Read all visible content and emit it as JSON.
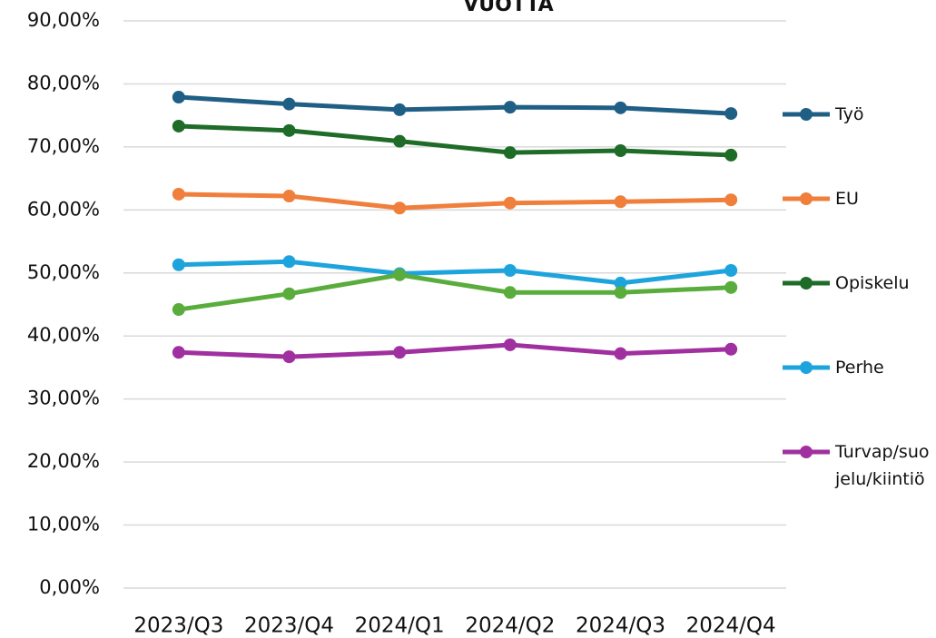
{
  "chart_data": {
    "type": "line",
    "title": "VUOTTA",
    "categories": [
      "2023/Q3",
      "2023/Q4",
      "2024/Q1",
      "2024/Q2",
      "2024/Q3",
      "2024/Q4"
    ],
    "series": [
      {
        "name": "Työ",
        "color": "#1f5f85",
        "values": [
          77.9,
          76.8,
          75.9,
          76.3,
          76.2,
          75.3
        ]
      },
      {
        "name": "EU",
        "color": "#f07f3c",
        "values": [
          62.5,
          62.2,
          60.3,
          61.1,
          61.3,
          61.6
        ]
      },
      {
        "name": "Opiskelu",
        "color": "#1f6b28",
        "values": [
          73.3,
          72.6,
          70.9,
          69.1,
          69.4,
          68.7
        ]
      },
      {
        "name": "Perhe",
        "color": "#1ea4dc",
        "values": [
          51.3,
          51.8,
          49.9,
          50.4,
          48.4,
          50.4
        ]
      },
      {
        "color": "#5aad3c",
        "values": [
          44.2,
          46.7,
          49.7,
          46.9,
          46.9,
          47.7
        ]
      },
      {
        "name": "Turvap/suojelu/kiintiö",
        "color": "#a0309f",
        "values": [
          37.4,
          36.7,
          37.4,
          38.6,
          37.2,
          37.9
        ]
      }
    ],
    "ylim": [
      0,
      90
    ],
    "yticks": [
      {
        "value": 0,
        "label": "0,00%"
      },
      {
        "value": 10,
        "label": "10,00%"
      },
      {
        "value": 20,
        "label": "20,00%"
      },
      {
        "value": 30,
        "label": "30,00%"
      },
      {
        "value": 40,
        "label": "40,00%"
      },
      {
        "value": 50,
        "label": "50,00%"
      },
      {
        "value": 60,
        "label": "60,00%"
      },
      {
        "value": 70,
        "label": "70,00%"
      },
      {
        "value": 80,
        "label": "80,00%"
      },
      {
        "value": 90,
        "label": "90,00%"
      }
    ],
    "grid": true,
    "legend": "right"
  }
}
